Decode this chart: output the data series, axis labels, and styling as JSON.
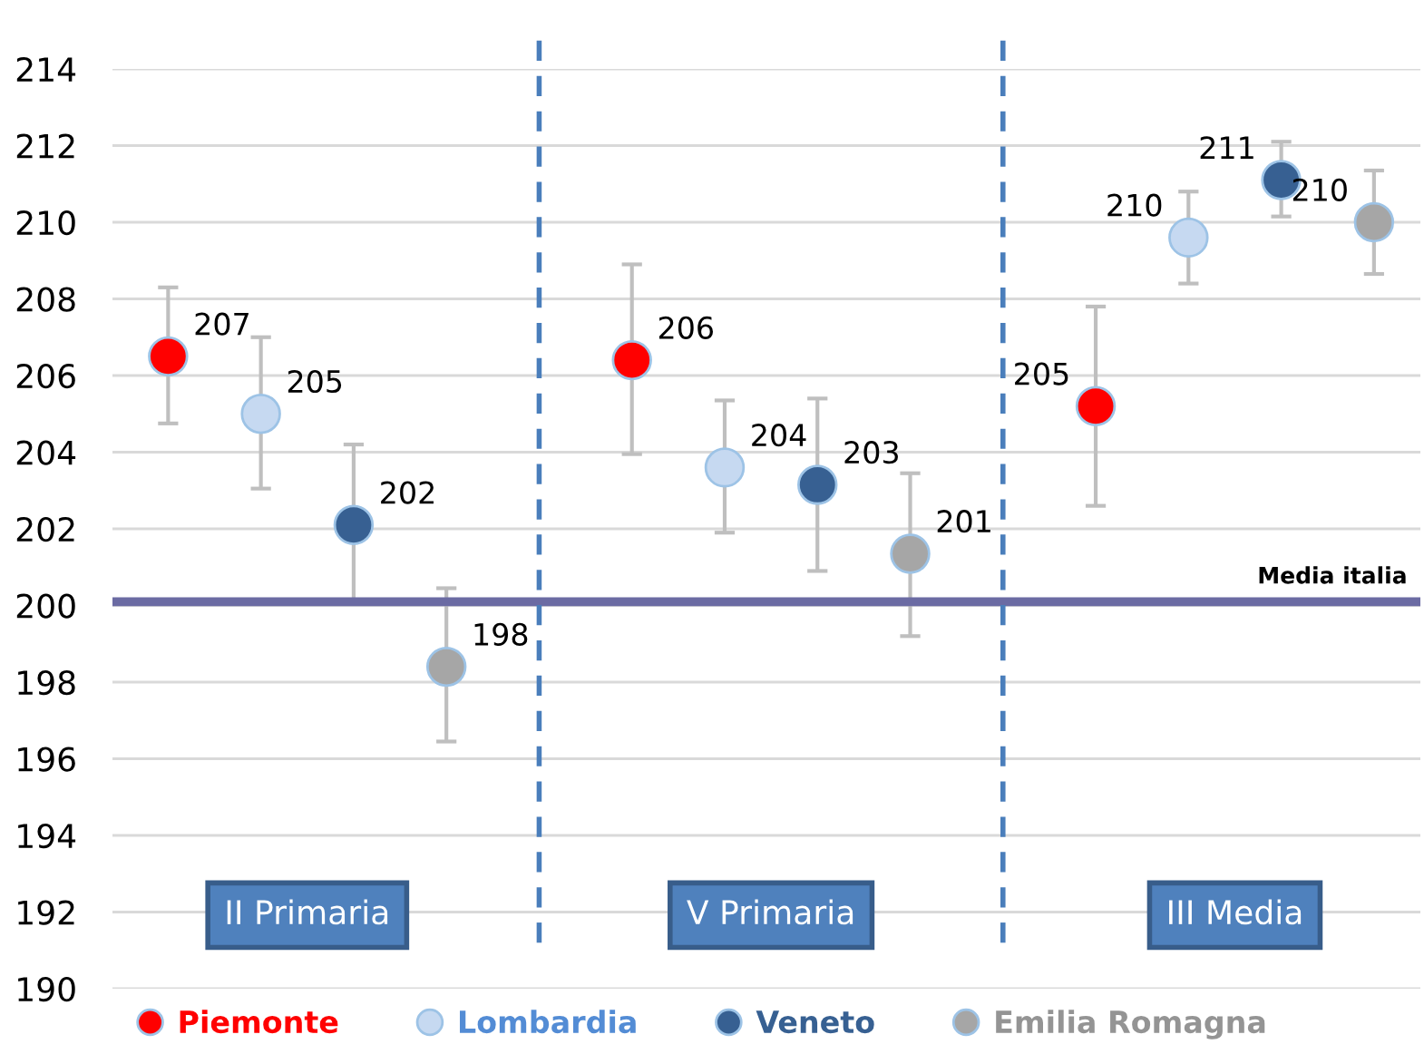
{
  "chart_data": {
    "type": "scatter",
    "categories": [
      null,
      null,
      null,
      null,
      null,
      null,
      null,
      null,
      null,
      null,
      null,
      null,
      null,
      null
    ],
    "series": [
      {
        "name": "Piemonte",
        "color": "#ff0000",
        "values": [
          206.5,
          null,
          null,
          null,
          null,
          206.4,
          null,
          null,
          null,
          null,
          205.2,
          null,
          null,
          null
        ],
        "errors": [
          [
            204.75,
            208.3
          ],
          null,
          null,
          null,
          null,
          [
            203.95,
            208.9
          ],
          null,
          null,
          null,
          null,
          [
            202.6,
            207.8
          ],
          null,
          null,
          null
        ],
        "value_labels": [
          "207",
          null,
          null,
          null,
          null,
          "206",
          null,
          null,
          null,
          null,
          "205",
          null,
          null,
          null
        ]
      },
      {
        "name": "Lombardia",
        "color": "#c6d9f1",
        "values": [
          null,
          205.0,
          null,
          null,
          null,
          null,
          203.6,
          null,
          null,
          null,
          null,
          209.6,
          null,
          null
        ],
        "errors": [
          null,
          [
            203.05,
            207.0
          ],
          null,
          null,
          null,
          null,
          [
            201.9,
            205.35
          ],
          null,
          null,
          null,
          null,
          [
            208.4,
            210.8
          ],
          null,
          null
        ],
        "value_labels": [
          null,
          "205",
          null,
          null,
          null,
          null,
          "204",
          null,
          null,
          null,
          null,
          "210",
          null,
          null
        ]
      },
      {
        "name": "Veneto",
        "color": "#376092",
        "values": [
          null,
          null,
          202.1,
          null,
          null,
          null,
          null,
          203.15,
          null,
          null,
          null,
          null,
          211.1,
          null
        ],
        "errors": [
          null,
          null,
          [
            200.15,
            204.2
          ],
          null,
          null,
          null,
          null,
          [
            200.9,
            205.4
          ],
          null,
          null,
          null,
          null,
          [
            210.15,
            212.1
          ],
          null
        ],
        "value_labels": [
          null,
          null,
          "202",
          null,
          null,
          null,
          null,
          "203",
          null,
          null,
          null,
          null,
          "211",
          null
        ]
      },
      {
        "name": "Emilia Romagna",
        "color": "#a6a6a6",
        "values": [
          null,
          null,
          null,
          198.4,
          null,
          null,
          null,
          null,
          201.35,
          null,
          null,
          null,
          null,
          210.0
        ],
        "errors": [
          null,
          null,
          null,
          [
            196.45,
            200.45
          ],
          null,
          null,
          null,
          null,
          [
            199.2,
            203.45
          ],
          null,
          null,
          null,
          null,
          [
            208.65,
            211.35
          ]
        ],
        "value_labels": [
          null,
          null,
          null,
          "198",
          null,
          null,
          null,
          null,
          "201",
          null,
          null,
          null,
          null,
          "210"
        ]
      }
    ],
    "annotations": [
      "II Primaria",
      "V Primaria",
      "III Media"
    ],
    "ref_lines": [
      {
        "axis": "y",
        "value": 200.1,
        "label": "Media italia",
        "color": "#6b6ba3",
        "line_style": "solid"
      }
    ],
    "ylim": [
      190,
      214
    ],
    "yticks": [
      190,
      192,
      194,
      196,
      198,
      200,
      202,
      204,
      206,
      208,
      210,
      212,
      214
    ],
    "grid": "y",
    "legend": "bottom",
    "marker": "circle",
    "tick_labels": "y"
  }
}
